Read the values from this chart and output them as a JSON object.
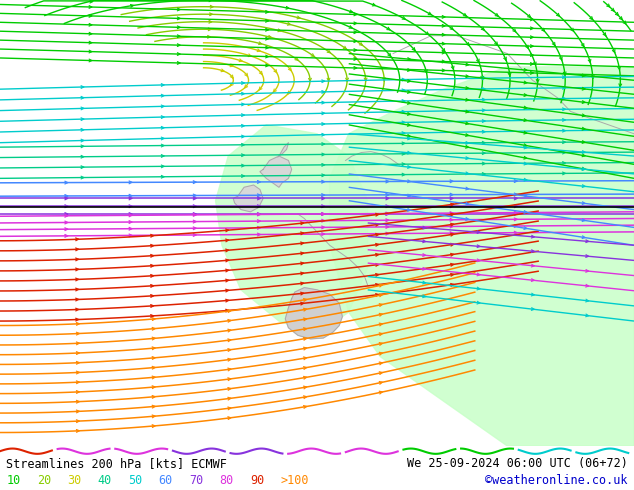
{
  "title_left": "Streamlines 200 hPa [kts] ECMWF",
  "title_right": "We 25-09-2024 06:00 UTC (06+72)",
  "credit": "©weatheronline.co.uk",
  "legend_values": [
    "10",
    "20",
    "30",
    "40",
    "50",
    "60",
    "70",
    "80",
    "90",
    ">100"
  ],
  "bg_color": "#e8e8e8",
  "green_region_color": "#ccffcc",
  "figsize": [
    6.34,
    4.9
  ],
  "dpi": 100,
  "c10": "#00cc00",
  "c20": "#88cc00",
  "c30": "#cccc00",
  "c40": "#00cc88",
  "c50": "#00cccc",
  "c60": "#4488ff",
  "c70": "#8833dd",
  "c80": "#dd33dd",
  "c90": "#dd2200",
  "c100": "#ff8800",
  "black_line_y": 0.535
}
